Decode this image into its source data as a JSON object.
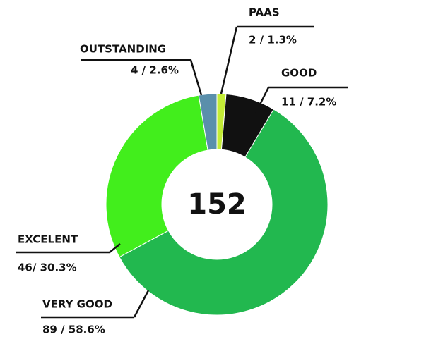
{
  "chart_data": {
    "type": "donut",
    "center_label": 152,
    "categories": [
      "PAAS",
      "GOOD",
      "VERY GOOD",
      "EXCELENT",
      "OUTSTANDING"
    ],
    "values": [
      2,
      11,
      89,
      46,
      4
    ],
    "value_labels": [
      "2 / 1.3%",
      "11 / 7.2%",
      "89 / 58.6%",
      "46/ 30.3%",
      "4 / 2.6%"
    ],
    "colors": [
      "#c3ec36",
      "#111111",
      "#22b84f",
      "#42ee1c",
      "#5a8fab"
    ]
  }
}
